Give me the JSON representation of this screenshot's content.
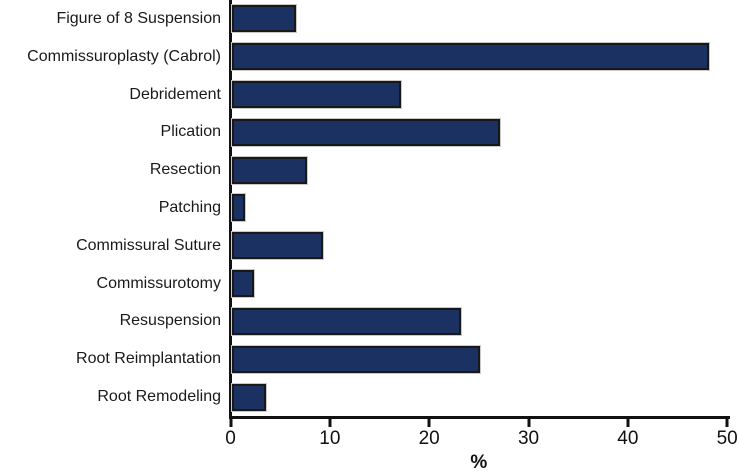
{
  "chart_data": {
    "type": "bar",
    "orientation": "horizontal",
    "title": "",
    "categories": [
      "Figure of 8 Suspension",
      "Commissuroplasty (Cabrol)",
      "Debridement",
      "Plication",
      "Resection",
      "Patching",
      "Commissural Suture",
      "Commissurotomy",
      "Resuspension",
      "Root Reimplantation",
      "Root Remodeling"
    ],
    "values": [
      6.4,
      48,
      17,
      27,
      7.5,
      1.3,
      9.2,
      2.2,
      23,
      25,
      3.4
    ],
    "xlabel": "%",
    "x_ticks": [
      0,
      10,
      20,
      30,
      40,
      50
    ],
    "xlim": [
      0,
      50
    ],
    "grid": false,
    "legend": "none",
    "bar_color": "#1b3161",
    "bar_border_color": "#181818",
    "axis_color": "#111111"
  }
}
